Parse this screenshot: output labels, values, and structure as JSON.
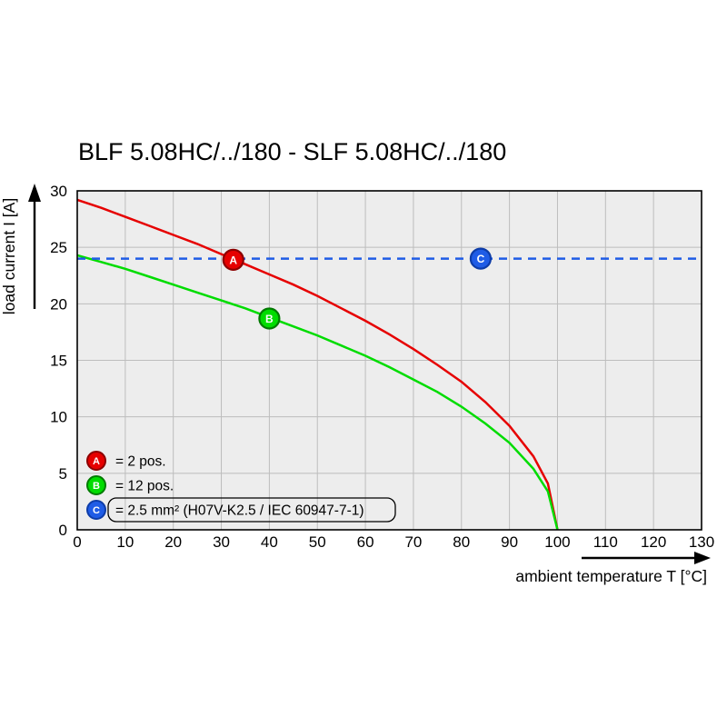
{
  "chart_data": {
    "type": "line",
    "title": "BLF 5.08HC/../180 - SLF 5.08HC/../180",
    "xlabel": "ambient temperature T [°C]",
    "ylabel": "load current I [A]",
    "xlim": [
      0,
      130
    ],
    "ylim": [
      0,
      30
    ],
    "xticks": [
      0,
      10,
      20,
      30,
      40,
      50,
      60,
      70,
      80,
      90,
      100,
      110,
      120,
      130
    ],
    "yticks": [
      0,
      5,
      10,
      15,
      20,
      25,
      30
    ],
    "grid": true,
    "plot_bg": "#ededed",
    "grid_color": "#bdbdbd",
    "border_color": "#000000",
    "series": [
      {
        "name": "A",
        "color": "#e60000",
        "dark": "#8c0000",
        "style": "solid",
        "points": [
          [
            0,
            29.2
          ],
          [
            5,
            28.5
          ],
          [
            10,
            27.7
          ],
          [
            15,
            26.9
          ],
          [
            20,
            26.1
          ],
          [
            25,
            25.3
          ],
          [
            30,
            24.4
          ],
          [
            35,
            23.5
          ],
          [
            40,
            22.6
          ],
          [
            45,
            21.7
          ],
          [
            50,
            20.7
          ],
          [
            55,
            19.6
          ],
          [
            60,
            18.5
          ],
          [
            65,
            17.3
          ],
          [
            70,
            16.0
          ],
          [
            75,
            14.6
          ],
          [
            80,
            13.1
          ],
          [
            85,
            11.3
          ],
          [
            90,
            9.2
          ],
          [
            95,
            6.5
          ],
          [
            98,
            4.1
          ],
          [
            100,
            0
          ]
        ]
      },
      {
        "name": "B",
        "color": "#00dc00",
        "dark": "#007a00",
        "style": "solid",
        "points": [
          [
            0,
            24.3
          ],
          [
            5,
            23.7
          ],
          [
            10,
            23.1
          ],
          [
            15,
            22.4
          ],
          [
            20,
            21.7
          ],
          [
            25,
            21.0
          ],
          [
            30,
            20.3
          ],
          [
            35,
            19.6
          ],
          [
            40,
            18.8
          ],
          [
            45,
            18.0
          ],
          [
            50,
            17.2
          ],
          [
            55,
            16.3
          ],
          [
            60,
            15.4
          ],
          [
            65,
            14.4
          ],
          [
            70,
            13.3
          ],
          [
            75,
            12.2
          ],
          [
            80,
            10.9
          ],
          [
            85,
            9.4
          ],
          [
            90,
            7.7
          ],
          [
            95,
            5.4
          ],
          [
            98,
            3.4
          ],
          [
            100,
            0
          ]
        ]
      },
      {
        "name": "C",
        "color": "#1f5ce6",
        "dark": "#0d3ca8",
        "style": "dashed",
        "points": [
          [
            0,
            24
          ],
          [
            130,
            24
          ]
        ]
      }
    ],
    "markers": [
      {
        "label": "A",
        "x": 32.5,
        "y": 23.9
      },
      {
        "label": "B",
        "x": 40,
        "y": 18.7
      },
      {
        "label": "C",
        "x": 84,
        "y": 24
      }
    ],
    "legend": [
      {
        "label": "A",
        "text": "= 2 pos.",
        "boxed": false
      },
      {
        "label": "B",
        "text": "= 12 pos.",
        "boxed": false
      },
      {
        "label": "C",
        "text": "= 2.5 mm² (H07V-K2.5 / IEC 60947-7-1)",
        "boxed": true
      }
    ]
  }
}
